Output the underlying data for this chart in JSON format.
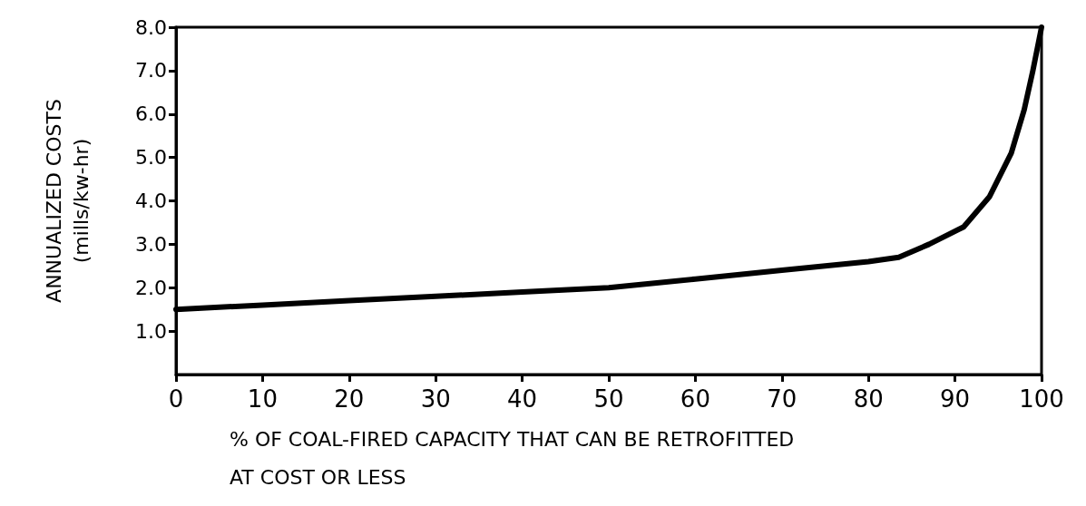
{
  "chart_data": {
    "type": "line",
    "xlabel": "% OF COAL-FIRED CAPACITY THAT CAN BE RETROFITTED\nAT COST OR LESS",
    "ylabel": "ANNUALIZED COSTS\n(mills/kw-hr)",
    "x": [
      0,
      10,
      20,
      30,
      40,
      50,
      60,
      70,
      80,
      83.5,
      87,
      91,
      94,
      96.5,
      98,
      99,
      100
    ],
    "series": [
      {
        "color": "#000000",
        "values": [
          1.5,
          1.6,
          1.7,
          1.8,
          1.9,
          2.0,
          2.2,
          2.4,
          2.6,
          2.7,
          3.0,
          3.4,
          4.1,
          5.1,
          6.1,
          7.0,
          8.0
        ]
      }
    ],
    "xlim": [
      0,
      100
    ],
    "xticks": [
      0,
      10,
      20,
      30,
      40,
      50,
      60,
      70,
      80,
      90,
      100
    ],
    "ylim": [
      0,
      8
    ],
    "yticks": [
      {
        "value": 1,
        "label": "1.0"
      },
      {
        "value": 2,
        "label": "2.0"
      },
      {
        "value": 3,
        "label": "3.0"
      },
      {
        "value": 4,
        "label": "4.0"
      },
      {
        "value": 5,
        "label": "5.0"
      },
      {
        "value": 6,
        "label": "6.0"
      },
      {
        "value": 7,
        "label": "7.0"
      },
      {
        "value": 8,
        "label": "8.0"
      }
    ],
    "grid": false,
    "marker": "none",
    "line_style": "solid"
  }
}
